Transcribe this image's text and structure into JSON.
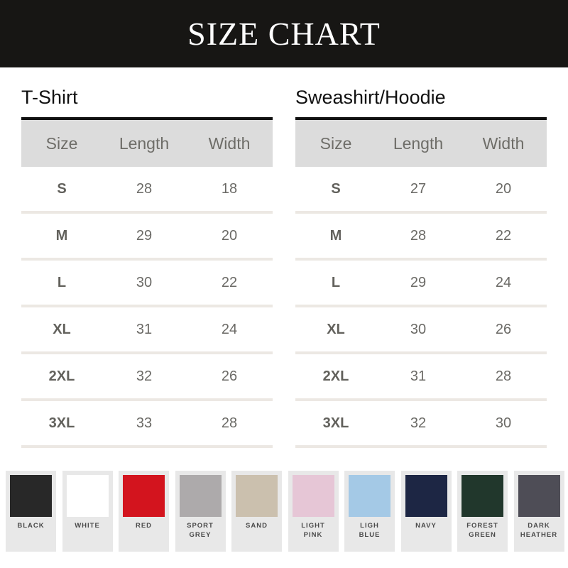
{
  "title": "SIZE CHART",
  "tables": [
    {
      "title": "T-Shirt",
      "headers": [
        "Size",
        "Length",
        "Width"
      ],
      "rows": [
        [
          "S",
          "28",
          "18"
        ],
        [
          "M",
          "29",
          "20"
        ],
        [
          "L",
          "30",
          "22"
        ],
        [
          "XL",
          "31",
          "24"
        ],
        [
          "2XL",
          "32",
          "26"
        ],
        [
          "3XL",
          "33",
          "28"
        ]
      ]
    },
    {
      "title": "Sweashirt/Hoodie",
      "headers": [
        "Size",
        "Length",
        "Width"
      ],
      "rows": [
        [
          "S",
          "27",
          "20"
        ],
        [
          "M",
          "28",
          "22"
        ],
        [
          "L",
          "29",
          "24"
        ],
        [
          "XL",
          "30",
          "26"
        ],
        [
          "2XL",
          "31",
          "28"
        ],
        [
          "3XL",
          "32",
          "30"
        ]
      ]
    }
  ],
  "colors": [
    {
      "line1": "BLACK",
      "line2": "",
      "hex": "#282828"
    },
    {
      "line1": "WHITE",
      "line2": "",
      "hex": "#ffffff"
    },
    {
      "line1": "RED",
      "line2": "",
      "hex": "#d3141e"
    },
    {
      "line1": "SPORT",
      "line2": "GREY",
      "hex": "#adaaab"
    },
    {
      "line1": "SAND",
      "line2": "",
      "hex": "#cbc0ae"
    },
    {
      "line1": "LIGHT",
      "line2": "PINK",
      "hex": "#e6c6d6"
    },
    {
      "line1": "LIGH",
      "line2": "BLUE",
      "hex": "#a4c9e6"
    },
    {
      "line1": "NAVY",
      "line2": "",
      "hex": "#1d2644"
    },
    {
      "line1": "FOREST",
      "line2": "GREEN",
      "hex": "#21372c"
    },
    {
      "line1": "DARK",
      "line2": "HEATHER",
      "hex": "#4e4d56"
    }
  ]
}
